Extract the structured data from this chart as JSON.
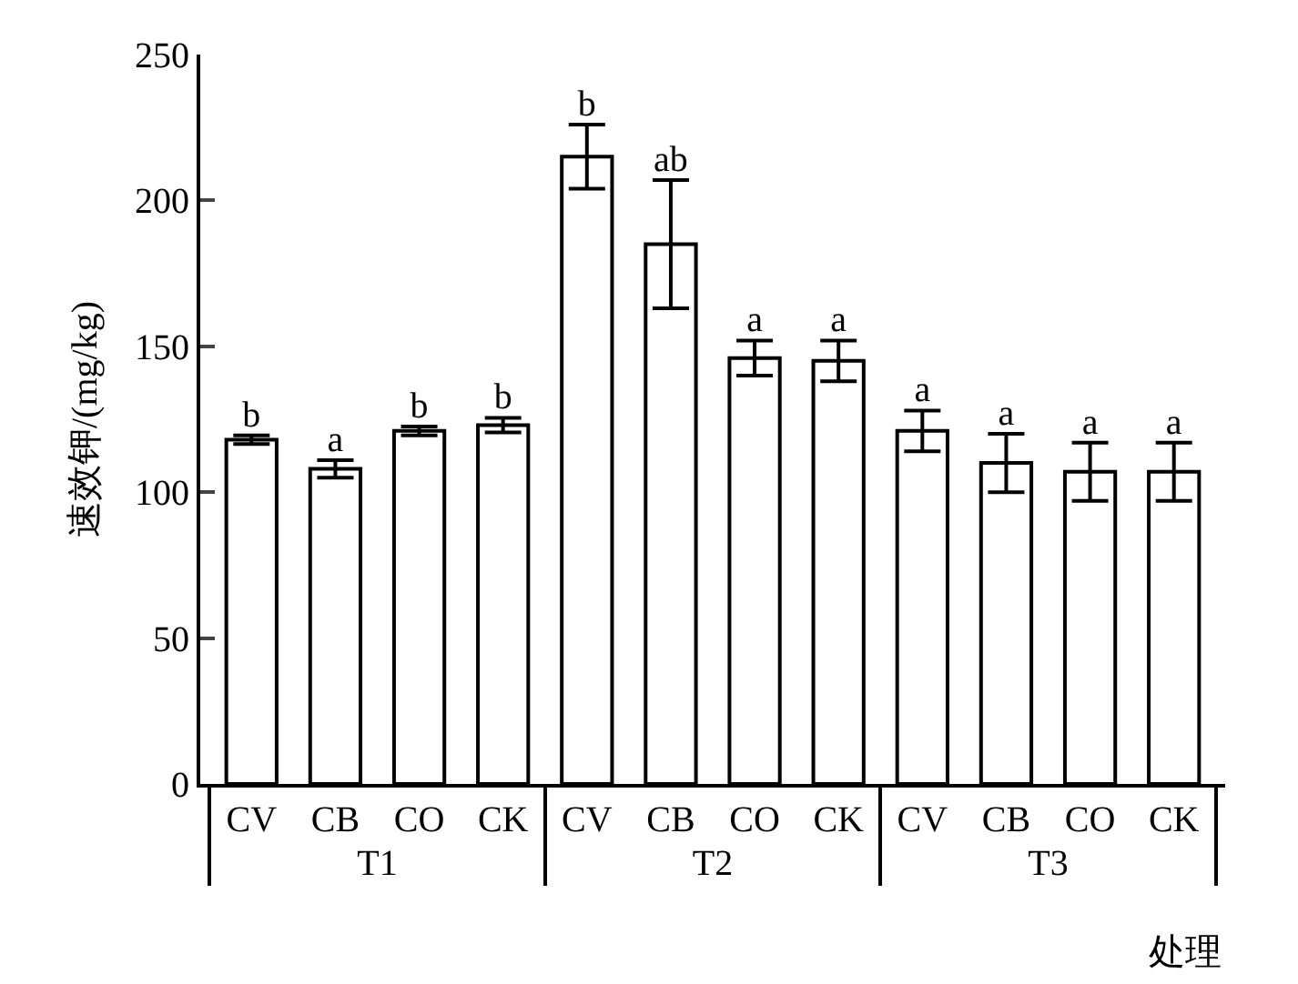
{
  "chart_data": {
    "type": "bar",
    "ylabel": "速效钾/(mg/kg)",
    "xlabel": "处理",
    "categories": [
      "CV",
      "CB",
      "CO",
      "CK",
      "CV",
      "CB",
      "CO",
      "CK",
      "CV",
      "CB",
      "CO",
      "CK"
    ],
    "annotations": [
      "T1",
      "T2",
      "T3"
    ],
    "values": [
      118,
      108,
      121,
      123,
      215,
      185,
      146,
      145,
      121,
      110,
      107,
      107
    ],
    "errors": [
      1.5,
      3,
      1.5,
      2.5,
      11,
      22,
      6,
      7,
      7,
      10,
      10,
      10
    ],
    "value_labels": [
      "b",
      "a",
      "b",
      "b",
      "b",
      "ab",
      "a",
      "a",
      "a",
      "a",
      "a",
      "a"
    ],
    "color": "#ffffff",
    "ylim": [
      0,
      250
    ],
    "yticks": [
      0,
      50,
      100,
      150,
      200,
      250
    ]
  }
}
